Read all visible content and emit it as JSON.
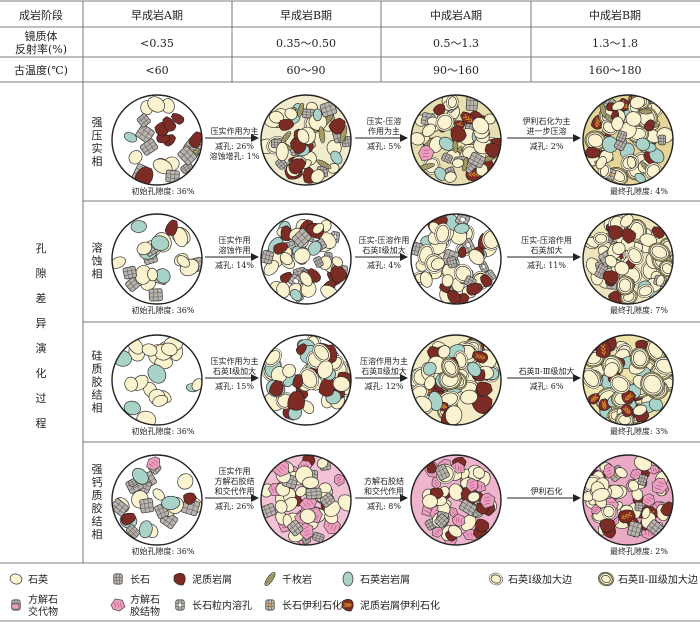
{
  "header": {
    "stage_label": "成岩阶段",
    "stages": [
      "早成岩A期",
      "早成岩B期",
      "中成岩A期",
      "中成岩B期"
    ],
    "ro_label": [
      "镜质体",
      "反射率(%)"
    ],
    "ro_values": [
      "<0.35",
      "0.35～0.50",
      "0.5～1.3",
      "1.3～1.8"
    ],
    "temp_label": "古温度(℃)",
    "temp_values": [
      "<60",
      "60～90",
      "90～160",
      "160～180"
    ]
  },
  "side_label": [
    "孔",
    "隙",
    "差",
    "异",
    "演",
    "化",
    "过",
    "程"
  ],
  "facies": [
    {
      "name": [
        "强",
        "压",
        "实",
        "相"
      ],
      "initial": "初始孔隙度: 36%",
      "final": "最终孔隙度: 4%",
      "steps": [
        {
          "lines": [
            "压实作用为主"
          ],
          "sub": [
            "减孔: 26%",
            "溶蚀增孔: 1%"
          ]
        },
        {
          "lines": [
            "压实-压溶",
            "作用为主"
          ],
          "sub": [
            "减孔: 5%"
          ]
        },
        {
          "lines": [
            "伊利石化为主",
            "进一步压溶"
          ],
          "sub": [
            "减孔: 2%"
          ]
        }
      ]
    },
    {
      "name": [
        "溶",
        "蚀",
        "相"
      ],
      "initial": "初始孔隙度: 36%",
      "final": "最终孔隙度: 7%",
      "steps": [
        {
          "lines": [
            "压实作用",
            "溶蚀作用"
          ],
          "sub": [
            "减孔: 14%"
          ]
        },
        {
          "lines": [
            "压实-压溶作用",
            "石英Ⅰ级加大"
          ],
          "sub": [
            "减孔: 4%"
          ]
        },
        {
          "lines": [
            "压实-压溶作用",
            "石英加大"
          ],
          "sub": [
            "减孔: 11%"
          ]
        }
      ]
    },
    {
      "name": [
        "硅",
        "质",
        "胶",
        "结",
        "相"
      ],
      "initial": "初始孔隙度: 36%",
      "final": "最终孔隙度: 3%",
      "steps": [
        {
          "lines": [
            "压实作用为主",
            "石英Ⅰ级加大"
          ],
          "sub": [
            "减孔: 15%"
          ]
        },
        {
          "lines": [
            "压溶作用为主",
            "石英Ⅱ级加大"
          ],
          "sub": [
            "减孔: 12%"
          ]
        },
        {
          "lines": [
            "石英Ⅱ-Ⅲ级加大"
          ],
          "sub": [
            "减孔: 6%"
          ]
        }
      ]
    },
    {
      "name": [
        "强",
        "钙",
        "质",
        "胶",
        "结",
        "相"
      ],
      "initial": "初始孔隙度: 36%",
      "final": "最终孔隙度: 2%",
      "steps": [
        {
          "lines": [
            "压实作用",
            "方解石胶结",
            "和交代作用"
          ],
          "sub": [
            "减孔: 26%"
          ]
        },
        {
          "lines": [
            "方解石胶结",
            "和交代作用"
          ],
          "sub": [
            "减孔: 8%"
          ]
        },
        {
          "lines": [
            "伊利石化"
          ],
          "sub": []
        }
      ]
    }
  ],
  "legend": [
    {
      "label": [
        "石英"
      ],
      "icon": "quartz-icon"
    },
    {
      "label": [
        "长石"
      ],
      "icon": "feldspar-icon"
    },
    {
      "label": [
        "泥质岩屑"
      ],
      "icon": "mud-lithic-icon"
    },
    {
      "label": [
        "千枚岩"
      ],
      "icon": "phyllite-icon"
    },
    {
      "label": [
        "石英岩岩屑"
      ],
      "icon": "quartzite-lithic-icon"
    },
    {
      "label": [
        "石英Ⅰ级加大边"
      ],
      "icon": "quartz-overgrowth-1-icon"
    },
    {
      "label": [
        "石英Ⅱ-Ⅲ级加大边"
      ],
      "icon": "quartz-overgrowth-23-icon"
    },
    {
      "label": [
        "方解石",
        "交代物"
      ],
      "icon": "calcite-replacement-icon"
    },
    {
      "label": [
        "方解石",
        "胶结物"
      ],
      "icon": "calcite-cement-icon"
    },
    {
      "label": [
        "长石粒内溶孔"
      ],
      "icon": "feldspar-dissolution-icon"
    },
    {
      "label": [
        "长石伊利石化"
      ],
      "icon": "feldspar-illite-icon"
    },
    {
      "label": [
        "泥质岩屑伊利石化"
      ],
      "icon": "mud-illite-icon"
    }
  ],
  "colors": {
    "quartz": "#fbf3cf",
    "feldspar": "#b9b3ad",
    "mud": "#7c2b25",
    "phyllite": "#b7ad6a",
    "quartzite": "#a9d3c9",
    "calcite_cement": "#ec9ec0",
    "illite": "#d9902b"
  }
}
